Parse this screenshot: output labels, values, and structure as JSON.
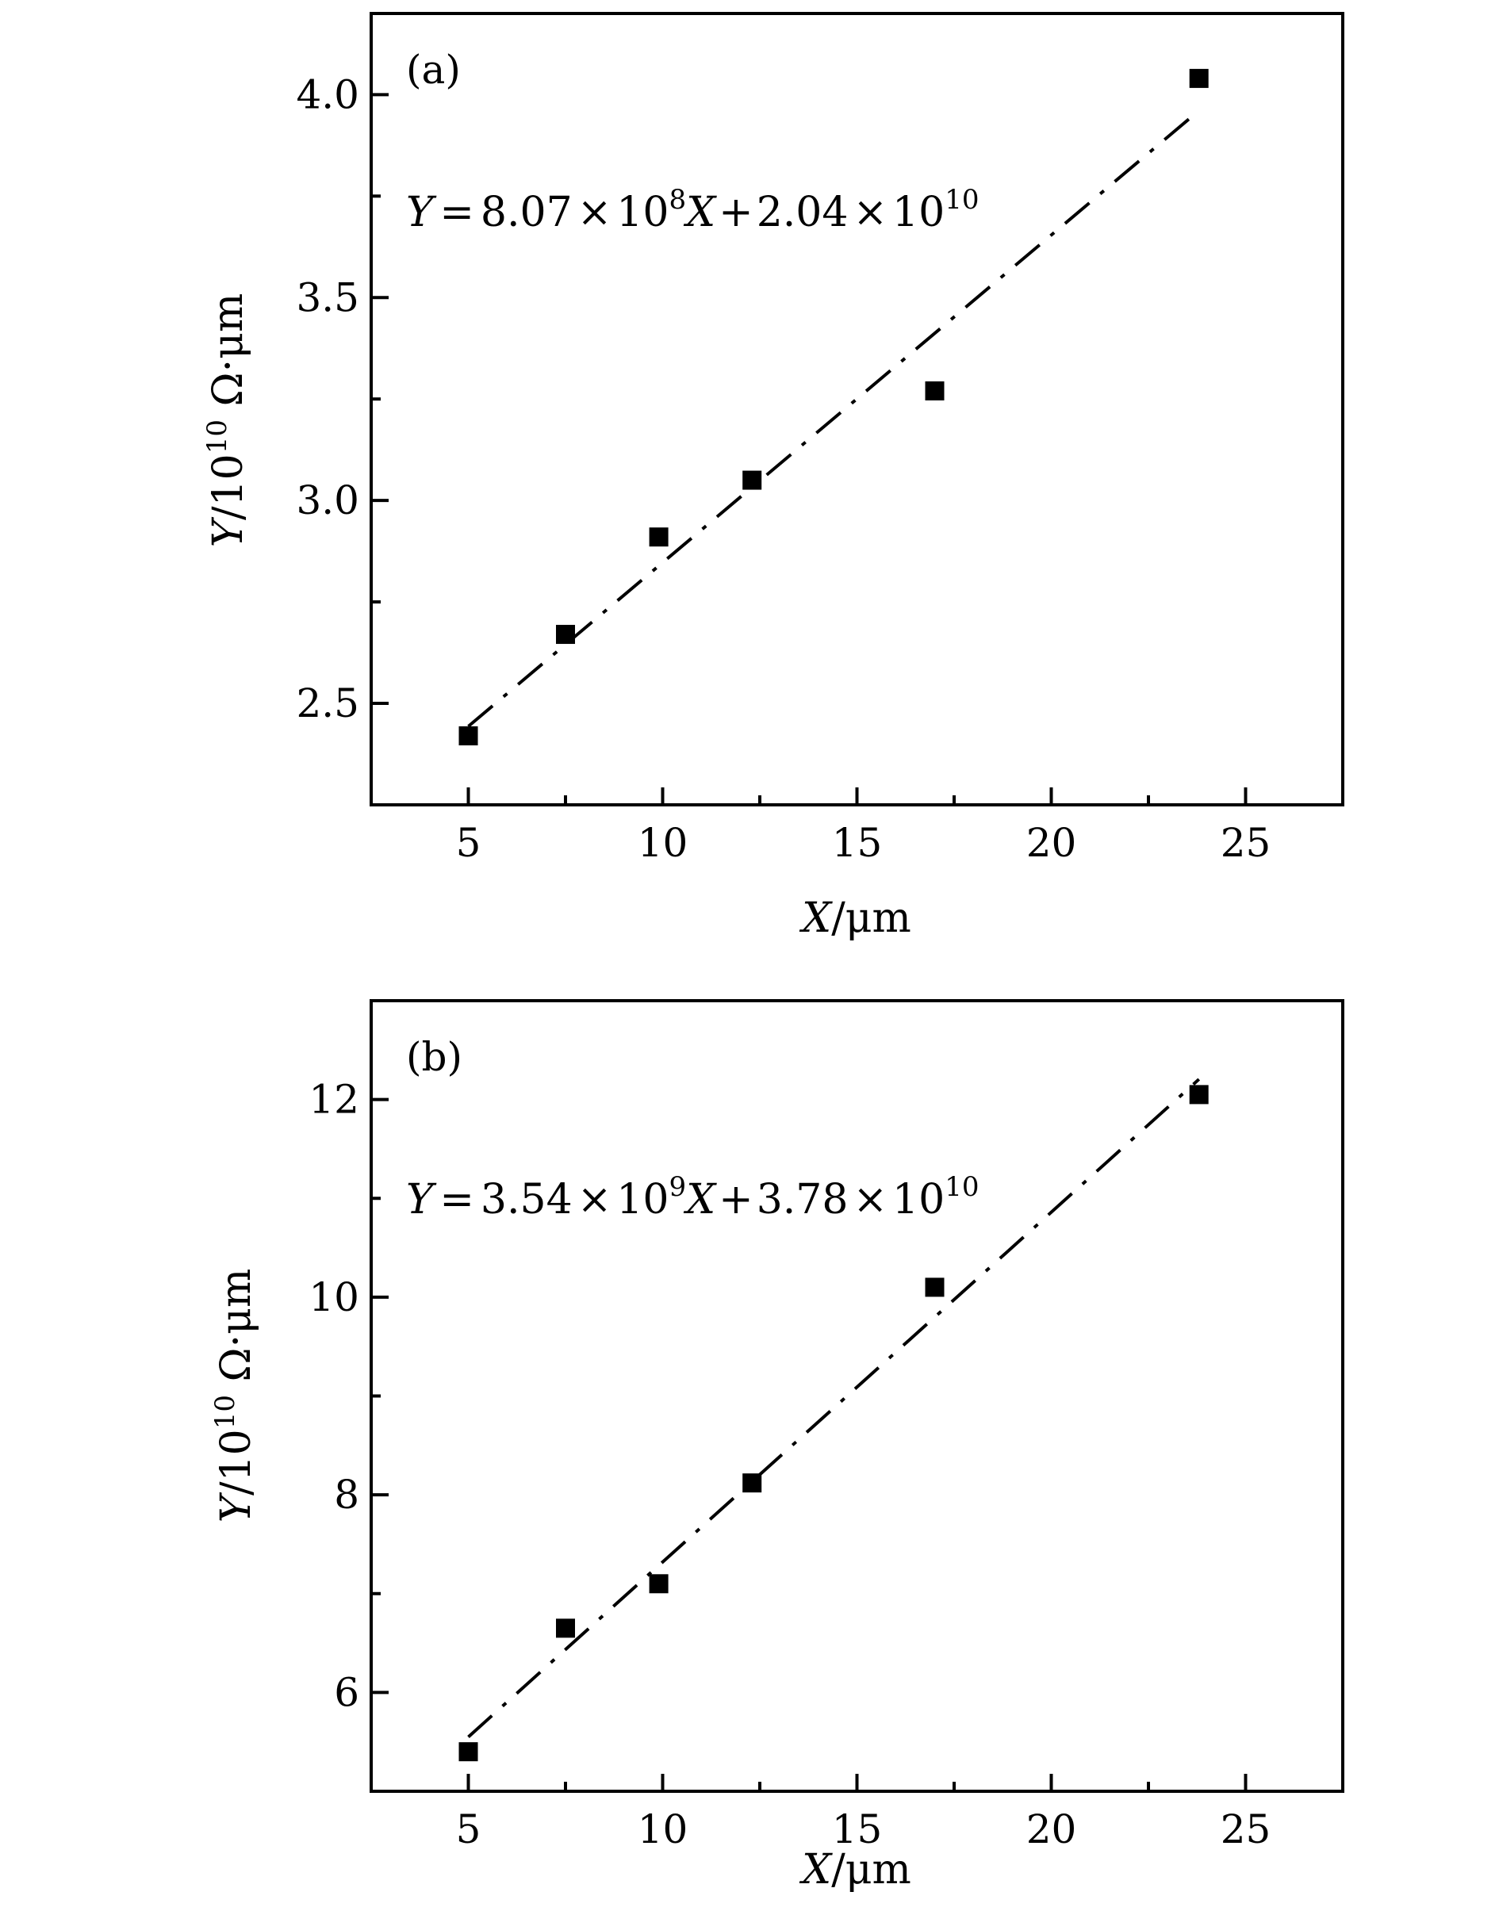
{
  "chart_data": [
    {
      "type": "scatter",
      "panel_label": "(a)",
      "equation": {
        "y_var": "Y",
        "eq": "=",
        "coef1": "8.07",
        "times1": "×",
        "base1": "10",
        "exp1": "8",
        "x_var": "X",
        "plus": "+",
        "coef2": "2.04",
        "times2": "×",
        "base2": "10",
        "exp2": "10"
      },
      "xlabel": {
        "var": "X",
        "unit": "/μm"
      },
      "ylabel": {
        "var": "Y",
        "unit_pre": "/10",
        "unit_exp": "10",
        "unit_post": " Ω·μm"
      },
      "xlim": [
        2.5,
        27.5
      ],
      "ylim": [
        2.25,
        4.2
      ],
      "xticks": [
        5,
        10,
        15,
        20,
        25
      ],
      "xtick_labels": [
        "5",
        "10",
        "15",
        "20",
        "25"
      ],
      "xminor": [
        7.5,
        12.5,
        17.5,
        22.5
      ],
      "yticks": [
        2.5,
        3.0,
        3.5,
        4.0
      ],
      "ytick_labels": [
        "2.5",
        "3.0",
        "3.5",
        "4.0"
      ],
      "yminor": [
        2.75,
        3.25,
        3.75
      ],
      "grid": false,
      "x": [
        5,
        7.5,
        9.9,
        12.3,
        17,
        23.8
      ],
      "y": [
        2.42,
        2.67,
        2.91,
        3.05,
        3.27,
        4.04
      ],
      "fit": {
        "slope": 0.0807,
        "intercept": 2.04,
        "x_range": [
          5,
          23.8
        ],
        "style": "dash-dot"
      }
    },
    {
      "type": "scatter",
      "panel_label": "(b)",
      "equation": {
        "y_var": "Y",
        "eq": "=",
        "coef1": "3.54",
        "times1": "×",
        "base1": "10",
        "exp1": "9",
        "x_var": "X",
        "plus": "+",
        "coef2": "3.78",
        "times2": "×",
        "base2": "10",
        "exp2": "10"
      },
      "xlabel": {
        "var": "X",
        "unit": "/μm"
      },
      "ylabel": {
        "var": "Y",
        "unit_pre": "/10",
        "unit_exp": "10",
        "unit_post": " Ω·μm"
      },
      "xlim": [
        2.5,
        27.5
      ],
      "ylim": [
        5.0,
        13.0
      ],
      "xticks": [
        5,
        10,
        15,
        20,
        25
      ],
      "xtick_labels": [
        "5",
        "10",
        "15",
        "20",
        "25"
      ],
      "xminor": [
        7.5,
        12.5,
        17.5,
        22.5
      ],
      "yticks": [
        6,
        8,
        10,
        12
      ],
      "ytick_labels": [
        "6",
        "8",
        "10",
        "12"
      ],
      "yminor": [
        7,
        9,
        11
      ],
      "grid": false,
      "x": [
        5,
        7.5,
        9.9,
        12.3,
        17,
        23.8
      ],
      "y": [
        5.4,
        6.65,
        7.1,
        8.12,
        10.1,
        12.05
      ],
      "fit": {
        "slope": 0.354,
        "intercept": 3.78,
        "x_range": [
          5,
          23.8
        ],
        "style": "dash-dot"
      }
    }
  ]
}
